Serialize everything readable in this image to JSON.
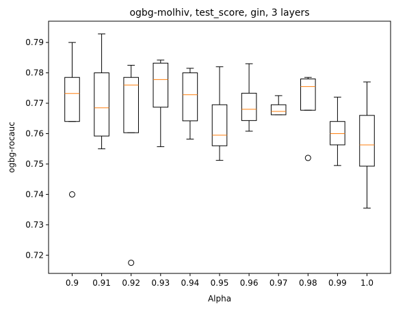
{
  "chart_data": {
    "type": "boxplot",
    "title": "ogbg-molhiv, test_score, gin, 3 layers",
    "xlabel": "Alpha",
    "ylabel": "ogbg-rocauc",
    "ylim": [
      0.714,
      0.797
    ],
    "yticks": [
      "0.72",
      "0.73",
      "0.74",
      "0.75",
      "0.76",
      "0.77",
      "0.78",
      "0.79"
    ],
    "grid": false,
    "median_color": "#ff7f0e",
    "box_color": "#000000",
    "categories": [
      "0.9",
      "0.91",
      "0.92",
      "0.93",
      "0.94",
      "0.95",
      "0.96",
      "0.97",
      "0.98",
      "0.99",
      "1.0"
    ],
    "boxes": [
      {
        "category": "0.9",
        "whisker_low": 0.764,
        "q1": 0.764,
        "median": 0.7732,
        "q3": 0.7785,
        "whisker_high": 0.79,
        "outliers": [
          0.74
        ]
      },
      {
        "category": "0.91",
        "whisker_low": 0.755,
        "q1": 0.7592,
        "median": 0.7685,
        "q3": 0.78,
        "whisker_high": 0.7928,
        "outliers": []
      },
      {
        "category": "0.92",
        "whisker_low": 0.7603,
        "q1": 0.7603,
        "median": 0.776,
        "q3": 0.7785,
        "whisker_high": 0.7825,
        "outliers": [
          0.7175
        ]
      },
      {
        "category": "0.93",
        "whisker_low": 0.7557,
        "q1": 0.7687,
        "median": 0.7778,
        "q3": 0.7832,
        "whisker_high": 0.7842,
        "outliers": []
      },
      {
        "category": "0.94",
        "whisker_low": 0.7582,
        "q1": 0.7642,
        "median": 0.7728,
        "q3": 0.78,
        "whisker_high": 0.7815,
        "outliers": []
      },
      {
        "category": "0.95",
        "whisker_low": 0.7512,
        "q1": 0.756,
        "median": 0.7595,
        "q3": 0.7695,
        "whisker_high": 0.782,
        "outliers": []
      },
      {
        "category": "0.96",
        "whisker_low": 0.7608,
        "q1": 0.7643,
        "median": 0.768,
        "q3": 0.7733,
        "whisker_high": 0.783,
        "outliers": []
      },
      {
        "category": "0.97",
        "whisker_low": 0.7662,
        "q1": 0.7662,
        "median": 0.7673,
        "q3": 0.7695,
        "whisker_high": 0.7725,
        "outliers": []
      },
      {
        "category": "0.98",
        "whisker_low": 0.7677,
        "q1": 0.7677,
        "median": 0.7755,
        "q3": 0.778,
        "whisker_high": 0.7785,
        "outliers": [
          0.752
        ]
      },
      {
        "category": "0.99",
        "whisker_low": 0.7495,
        "q1": 0.7563,
        "median": 0.76,
        "q3": 0.764,
        "whisker_high": 0.772,
        "outliers": []
      },
      {
        "category": "1.0",
        "whisker_low": 0.7355,
        "q1": 0.7493,
        "median": 0.7563,
        "q3": 0.766,
        "whisker_high": 0.777,
        "outliers": []
      }
    ]
  }
}
